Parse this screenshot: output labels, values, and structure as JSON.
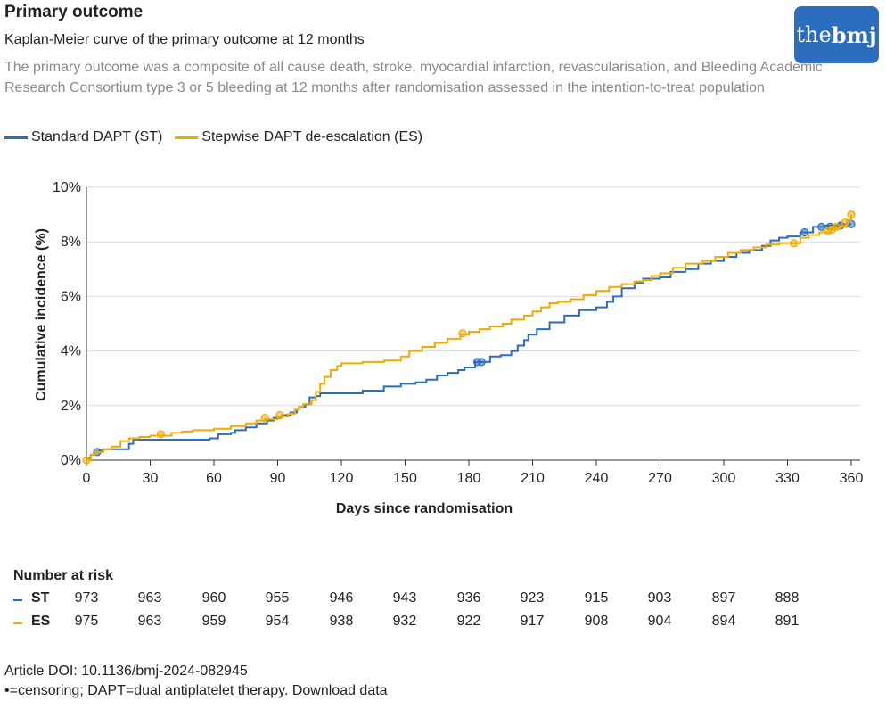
{
  "header": {
    "title": "Primary outcome",
    "subtitle": "Kaplan-Meier curve of the primary outcome at 12 months",
    "description": "The primary outcome was a composite of all cause death, stroke, myocardial infarction, revascularisation, and Bleeding Academic Research Consortium type 3 or 5 bleeding at 12 months after randomisation assessed in the intention-to-treat population"
  },
  "logo": {
    "part1": "the",
    "part2": "bmj",
    "color": "#2a6ebd"
  },
  "legend": {
    "st_label": "Standard DAPT (ST)",
    "es_label": "Stepwise DAPT de-escalation (ES)"
  },
  "colors": {
    "st": "#2a6ebd",
    "es": "#f0ab00",
    "grid": "#dcdcdc",
    "axis": "#333333"
  },
  "chart_data": {
    "type": "line",
    "xlabel": "Days since randomisation",
    "ylabel": "Cumulative incidence (%)",
    "xlim": [
      0,
      360
    ],
    "ylim": [
      0,
      10
    ],
    "xticks": [
      0,
      30,
      60,
      90,
      120,
      150,
      180,
      210,
      240,
      270,
      300,
      330,
      360
    ],
    "yticks": [
      {
        "value": 0,
        "label": "0%"
      },
      {
        "value": 2,
        "label": "2%"
      },
      {
        "value": 4,
        "label": "4%"
      },
      {
        "value": 6,
        "label": "6%"
      },
      {
        "value": 8,
        "label": "8%"
      },
      {
        "value": 10,
        "label": "10%"
      }
    ],
    "grid": "horizontal",
    "series": [
      {
        "name": "Standard DAPT (ST)",
        "key": "st",
        "step_points": [
          [
            0,
            0
          ],
          [
            1,
            0.1
          ],
          [
            2,
            0.2
          ],
          [
            4,
            0.3
          ],
          [
            6,
            0.35
          ],
          [
            8,
            0.4
          ],
          [
            10,
            0.4
          ],
          [
            18,
            0.4
          ],
          [
            20,
            0.6
          ],
          [
            22,
            0.75
          ],
          [
            30,
            0.75
          ],
          [
            40,
            0.75
          ],
          [
            50,
            0.75
          ],
          [
            58,
            0.8
          ],
          [
            62,
            0.95
          ],
          [
            68,
            1.0
          ],
          [
            70,
            1.1
          ],
          [
            75,
            1.2
          ],
          [
            80,
            1.35
          ],
          [
            85,
            1.45
          ],
          [
            88,
            1.55
          ],
          [
            92,
            1.65
          ],
          [
            96,
            1.75
          ],
          [
            99,
            1.85
          ],
          [
            100,
            1.95
          ],
          [
            103,
            2.05
          ],
          [
            105,
            2.3
          ],
          [
            108,
            2.35
          ],
          [
            110,
            2.45
          ],
          [
            120,
            2.45
          ],
          [
            130,
            2.55
          ],
          [
            140,
            2.7
          ],
          [
            148,
            2.8
          ],
          [
            155,
            2.85
          ],
          [
            160,
            2.95
          ],
          [
            165,
            3.1
          ],
          [
            170,
            3.2
          ],
          [
            175,
            3.3
          ],
          [
            178,
            3.4
          ],
          [
            183,
            3.6
          ],
          [
            186,
            3.6
          ],
          [
            190,
            3.8
          ],
          [
            195,
            3.85
          ],
          [
            200,
            4.0
          ],
          [
            203,
            4.2
          ],
          [
            206,
            4.4
          ],
          [
            208,
            4.6
          ],
          [
            212,
            4.8
          ],
          [
            218,
            5.05
          ],
          [
            225,
            5.3
          ],
          [
            232,
            5.5
          ],
          [
            240,
            5.6
          ],
          [
            245,
            5.8
          ],
          [
            248,
            6.0
          ],
          [
            252,
            6.3
          ],
          [
            258,
            6.5
          ],
          [
            262,
            6.65
          ],
          [
            270,
            6.7
          ],
          [
            275,
            6.9
          ],
          [
            282,
            7.0
          ],
          [
            288,
            7.2
          ],
          [
            294,
            7.3
          ],
          [
            300,
            7.45
          ],
          [
            306,
            7.6
          ],
          [
            312,
            7.7
          ],
          [
            318,
            7.85
          ],
          [
            322,
            8.05
          ],
          [
            326,
            8.15
          ],
          [
            330,
            8.2
          ],
          [
            336,
            8.35
          ],
          [
            342,
            8.55
          ],
          [
            348,
            8.6
          ],
          [
            354,
            8.65
          ],
          [
            360,
            8.65
          ]
        ],
        "censor_points": [
          [
            5,
            0.3
          ],
          [
            184,
            3.6
          ],
          [
            186,
            3.6
          ],
          [
            338,
            8.35
          ],
          [
            346,
            8.55
          ],
          [
            350,
            8.55
          ],
          [
            355,
            8.6
          ],
          [
            360,
            8.65
          ]
        ]
      },
      {
        "name": "Stepwise DAPT de-escalation (ES)",
        "key": "es",
        "step_points": [
          [
            0,
            0
          ],
          [
            2,
            0.2
          ],
          [
            4,
            0.3
          ],
          [
            8,
            0.4
          ],
          [
            12,
            0.5
          ],
          [
            16,
            0.7
          ],
          [
            20,
            0.8
          ],
          [
            25,
            0.85
          ],
          [
            30,
            0.9
          ],
          [
            40,
            1.0
          ],
          [
            45,
            1.05
          ],
          [
            50,
            1.1
          ],
          [
            60,
            1.15
          ],
          [
            68,
            1.25
          ],
          [
            75,
            1.35
          ],
          [
            80,
            1.45
          ],
          [
            84,
            1.5
          ],
          [
            90,
            1.6
          ],
          [
            95,
            1.7
          ],
          [
            98,
            1.85
          ],
          [
            100,
            1.95
          ],
          [
            102,
            2.05
          ],
          [
            106,
            2.2
          ],
          [
            108,
            2.5
          ],
          [
            110,
            2.8
          ],
          [
            112,
            3.05
          ],
          [
            115,
            3.3
          ],
          [
            118,
            3.45
          ],
          [
            120,
            3.55
          ],
          [
            130,
            3.6
          ],
          [
            140,
            3.65
          ],
          [
            148,
            3.8
          ],
          [
            152,
            4.0
          ],
          [
            158,
            4.15
          ],
          [
            164,
            4.3
          ],
          [
            170,
            4.45
          ],
          [
            176,
            4.6
          ],
          [
            180,
            4.7
          ],
          [
            185,
            4.8
          ],
          [
            190,
            4.9
          ],
          [
            196,
            5.0
          ],
          [
            200,
            5.15
          ],
          [
            206,
            5.3
          ],
          [
            210,
            5.45
          ],
          [
            214,
            5.6
          ],
          [
            218,
            5.75
          ],
          [
            222,
            5.8
          ],
          [
            228,
            5.9
          ],
          [
            234,
            6.05
          ],
          [
            240,
            6.2
          ],
          [
            246,
            6.35
          ],
          [
            252,
            6.45
          ],
          [
            258,
            6.55
          ],
          [
            262,
            6.6
          ],
          [
            266,
            6.75
          ],
          [
            270,
            6.85
          ],
          [
            276,
            7.05
          ],
          [
            282,
            7.2
          ],
          [
            290,
            7.3
          ],
          [
            296,
            7.45
          ],
          [
            302,
            7.6
          ],
          [
            308,
            7.7
          ],
          [
            314,
            7.8
          ],
          [
            320,
            7.9
          ],
          [
            326,
            7.95
          ],
          [
            332,
            7.95
          ],
          [
            336,
            8.15
          ],
          [
            340,
            8.25
          ],
          [
            345,
            8.35
          ],
          [
            350,
            8.5
          ],
          [
            355,
            8.55
          ],
          [
            358,
            8.8
          ],
          [
            360,
            9.0
          ]
        ],
        "censor_points": [
          [
            0,
            0
          ],
          [
            35,
            0.95
          ],
          [
            84,
            1.55
          ],
          [
            91,
            1.65
          ],
          [
            177,
            4.65
          ],
          [
            333,
            7.95
          ],
          [
            349,
            8.4
          ],
          [
            351,
            8.45
          ],
          [
            353,
            8.55
          ],
          [
            357,
            8.7
          ],
          [
            360,
            9.0
          ]
        ]
      }
    ]
  },
  "risk_table": {
    "title": "Number at risk",
    "rows": [
      {
        "label": "ST",
        "key": "st",
        "values": [
          "973",
          "963",
          "960",
          "955",
          "946",
          "943",
          "936",
          "923",
          "915",
          "903",
          "897",
          "888"
        ]
      },
      {
        "label": "ES",
        "key": "es",
        "values": [
          "975",
          "963",
          "959",
          "954",
          "938",
          "932",
          "922",
          "917",
          "908",
          "904",
          "894",
          "891"
        ]
      }
    ]
  },
  "footer": {
    "doi": "Article DOI: 10.1136/bmj-2024-082945",
    "note": "•=censoring; DAPT=dual antiplatelet therapy. Download data"
  }
}
